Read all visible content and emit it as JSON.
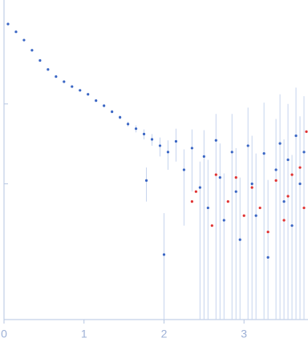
{
  "chart_data": {
    "type": "scatter",
    "xlim": [
      0,
      3.8
    ],
    "xticks": [
      0,
      1,
      2,
      3
    ],
    "ylim": [
      0.02,
      200
    ],
    "yticks": [
      1,
      10
    ],
    "yscale": "log",
    "series": [
      {
        "color": "#3a66c4",
        "error_color": "#c6d4ee",
        "x": [
          0.05,
          0.15,
          0.25,
          0.35,
          0.45,
          0.55,
          0.65,
          0.75,
          0.85,
          0.95,
          1.05,
          1.15,
          1.25,
          1.35,
          1.45,
          1.55,
          1.65,
          1.75,
          1.78,
          1.85,
          1.95,
          2.0,
          2.05,
          2.15,
          2.25,
          2.35,
          2.45,
          2.5,
          2.55,
          2.65,
          2.7,
          2.75,
          2.85,
          2.9,
          2.95,
          3.05,
          3.1,
          3.15,
          3.25,
          3.3,
          3.4,
          3.45,
          3.5,
          3.55,
          3.6,
          3.65,
          3.7,
          3.75
        ],
        "values": [
          100,
          80,
          63,
          47,
          35,
          27,
          22,
          19,
          16.5,
          14.8,
          13.2,
          11,
          9.5,
          8,
          6.8,
          5.6,
          4.9,
          4.2,
          1.1,
          3.6,
          3.0,
          0.13,
          2.5,
          3.4,
          1.5,
          2.8,
          0.9,
          2.2,
          0.5,
          3.5,
          1.2,
          0.35,
          2.5,
          0.8,
          0.2,
          3.0,
          1.0,
          0.4,
          2.4,
          0.12,
          1.5,
          3.2,
          0.6,
          2.0,
          0.3,
          4.0,
          1.0,
          2.5
        ],
        "errors": [
          2,
          1.5,
          1.2,
          1,
          0.8,
          0.6,
          0.5,
          0.4,
          0.4,
          0.4,
          0.4,
          0.4,
          0.4,
          0.4,
          0.4,
          0.4,
          0.5,
          0.6,
          0.5,
          0.6,
          0.8,
          0.3,
          1,
          1.5,
          1.2,
          2,
          1,
          2.5,
          1.5,
          4,
          2,
          1,
          5,
          2,
          1,
          6,
          3,
          2,
          8,
          1,
          5,
          10,
          3,
          8,
          2,
          12,
          6,
          10
        ]
      },
      {
        "color": "#e03232",
        "x": [
          2.35,
          2.4,
          2.6,
          2.65,
          2.8,
          2.9,
          3.0,
          3.1,
          3.2,
          3.3,
          3.4,
          3.5,
          3.55,
          3.6,
          3.7,
          3.75,
          3.78
        ],
        "values": [
          0.6,
          0.8,
          0.3,
          1.3,
          0.6,
          1.2,
          0.4,
          0.9,
          0.5,
          0.25,
          1.1,
          0.35,
          0.7,
          1.3,
          1.6,
          0.5,
          4.5
        ]
      }
    ]
  }
}
